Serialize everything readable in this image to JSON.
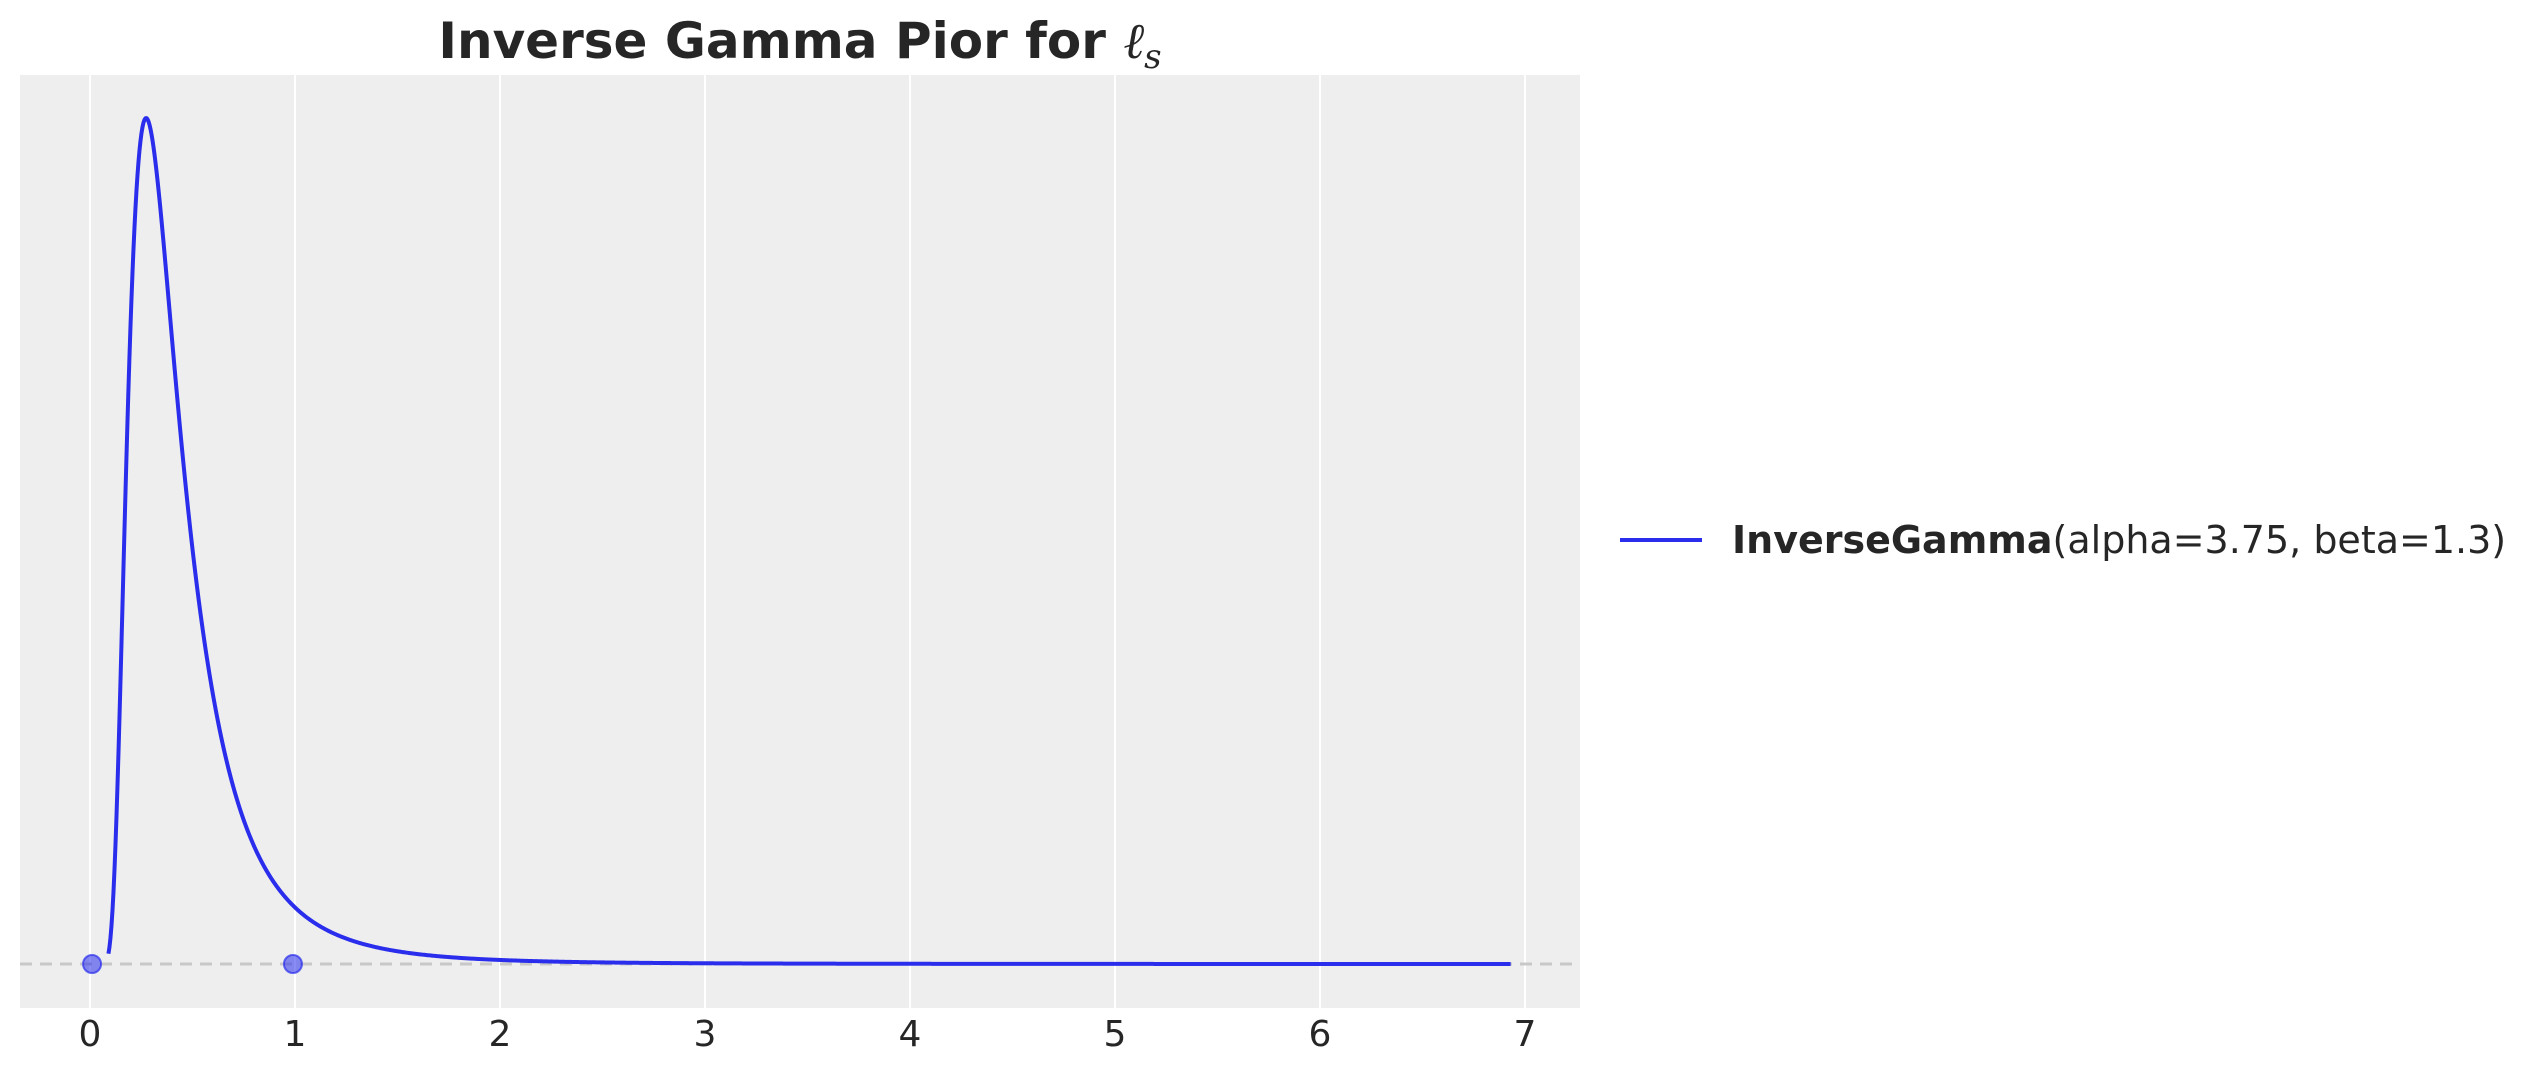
{
  "chart_data": {
    "type": "line",
    "title": {
      "text": "Inverse Gamma Pior for ",
      "math_symbol": "ℓ",
      "math_subscript": "s"
    },
    "xlabel": "",
    "ylabel": "",
    "xlim": [
      -0.35,
      7.27
    ],
    "x_ticks": [
      0,
      1,
      2,
      3,
      4,
      5,
      6,
      7
    ],
    "x_tick_labels": [
      "0",
      "1",
      "2",
      "3",
      "4",
      "5",
      "6",
      "7"
    ],
    "y_ticks_visible": false,
    "grid": "vertical",
    "background": "#eeeeee",
    "legend": {
      "placement": "outside-right",
      "entries": [
        {
          "name_bold": "InverseGamma",
          "name_params": "(alpha=3.75, beta=1.3)",
          "color": "#2a2eec"
        }
      ]
    },
    "series": [
      {
        "distribution": "InverseGamma",
        "alpha": 3.75,
        "beta": 1.3,
        "x_range": [
          0.09,
          6.93
        ],
        "color": "#2a2eec",
        "peak_x": 0.27
      }
    ],
    "reference_line": {
      "y": 0,
      "style": "dashed",
      "color": "#c8c8c8"
    },
    "points": [
      {
        "x": 0.01,
        "y": 0,
        "color": "#2a2eec"
      },
      {
        "x": 0.99,
        "y": 0,
        "color": "#2a2eec"
      }
    ]
  }
}
